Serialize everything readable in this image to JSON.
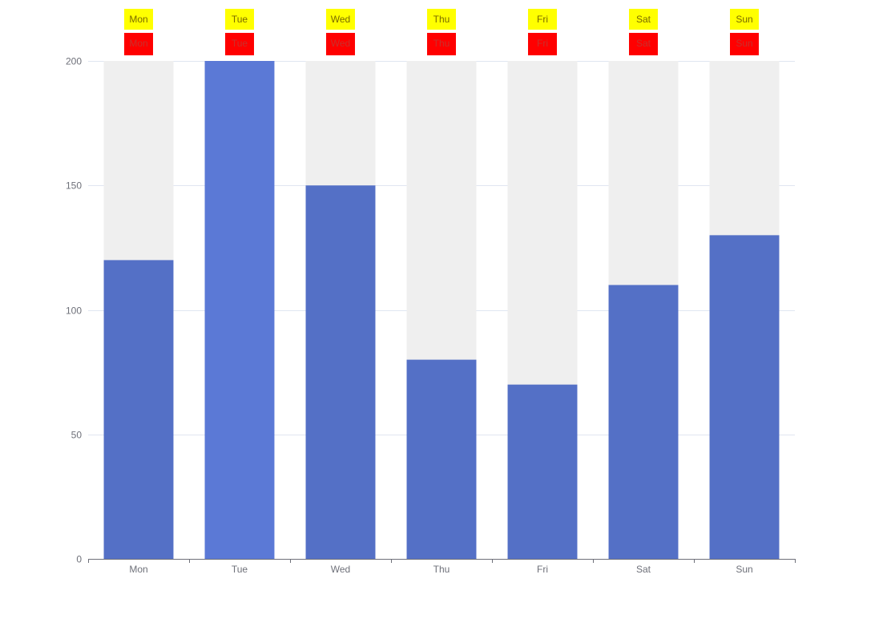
{
  "chart_data": {
    "type": "bar",
    "categories": [
      "Mon",
      "Tue",
      "Wed",
      "Thu",
      "Fri",
      "Sat",
      "Sun"
    ],
    "series": [
      {
        "values": [
          120,
          200,
          150,
          80,
          70,
          110,
          130
        ]
      }
    ],
    "ylim": [
      0,
      200
    ],
    "yticks": [
      0,
      50,
      100,
      150,
      200
    ],
    "grid": true,
    "show_background": true,
    "highlighted_category": "Tue",
    "top_labels_yellow": [
      "Mon",
      "Tue",
      "Wed",
      "Thu",
      "Fri",
      "Sat",
      "Sun"
    ],
    "top_labels_red": [
      "Mon",
      "Tue",
      "Wed",
      "Thu",
      "Fri",
      "Sat",
      "Sun"
    ],
    "colors": {
      "bar": "#5470c6",
      "bar_highlight": "#5b79d6",
      "bar_background": "#efefef",
      "grid": "#e0e6f1",
      "axis": "#6e7079",
      "axis_label": "#6e7079",
      "label_yellow_bg": "#ffff00",
      "label_yellow_text": "#7a6a00",
      "label_red_bg": "#ff0000",
      "label_red_text": "#c9302c"
    }
  }
}
